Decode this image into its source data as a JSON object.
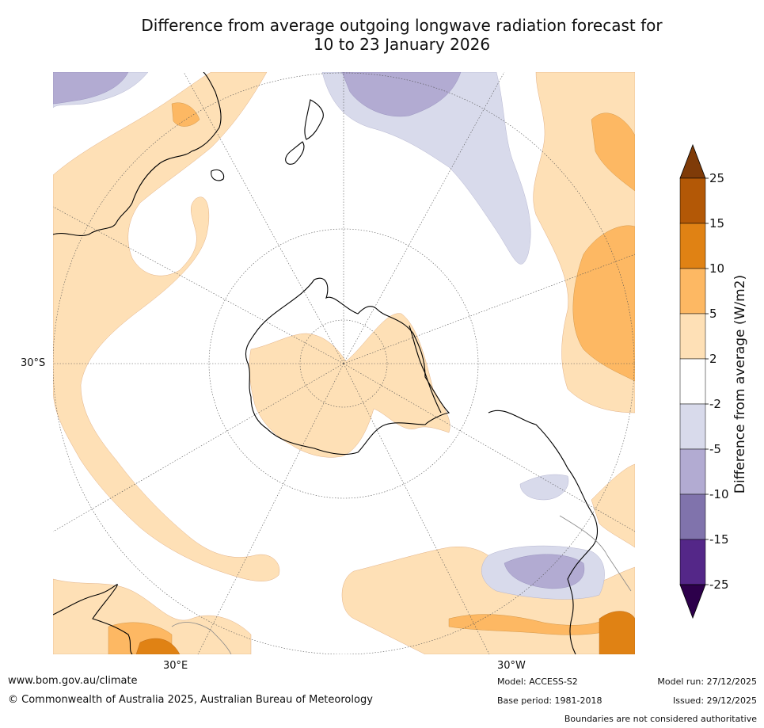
{
  "title": {
    "line1": "Difference from average outgoing longwave radiation forecast for",
    "line2": "10 to 23 January 2026"
  },
  "map": {
    "projection": "south-polar-stereographic",
    "lat_label": "30°S",
    "lon_labels": [
      "30°E",
      "30°W"
    ]
  },
  "legend": {
    "title": "Difference from average (W/m2)",
    "ticks": [
      "25",
      "15",
      "10",
      "5",
      "2",
      "-2",
      "-5",
      "-10",
      "-15",
      "-25"
    ],
    "colors": {
      "above_max": "#7f3b08",
      "c15_25": "#b35806",
      "c10_15": "#e08214",
      "c5_10": "#fdb863",
      "c2_5": "#fee0b6",
      "neutral": "#ffffff",
      "cm5_m2": "#d8daeb",
      "cm10_m5": "#b2abd2",
      "cm15_m10": "#8073ac",
      "cm25_m15": "#542788",
      "below_min": "#2d004b"
    }
  },
  "footer": {
    "website": "www.bom.gov.au/climate",
    "copyright": "© Commonwealth of Australia 2025, Australian Bureau of Meteorology",
    "model": "Model: ACCESS-S2",
    "base_period": "Base period: 1981-2018",
    "model_run": "Model run: 27/12/2025",
    "issued": "Issued: 29/12/2025",
    "disclaimer": "Boundaries are not considered authoritative"
  }
}
